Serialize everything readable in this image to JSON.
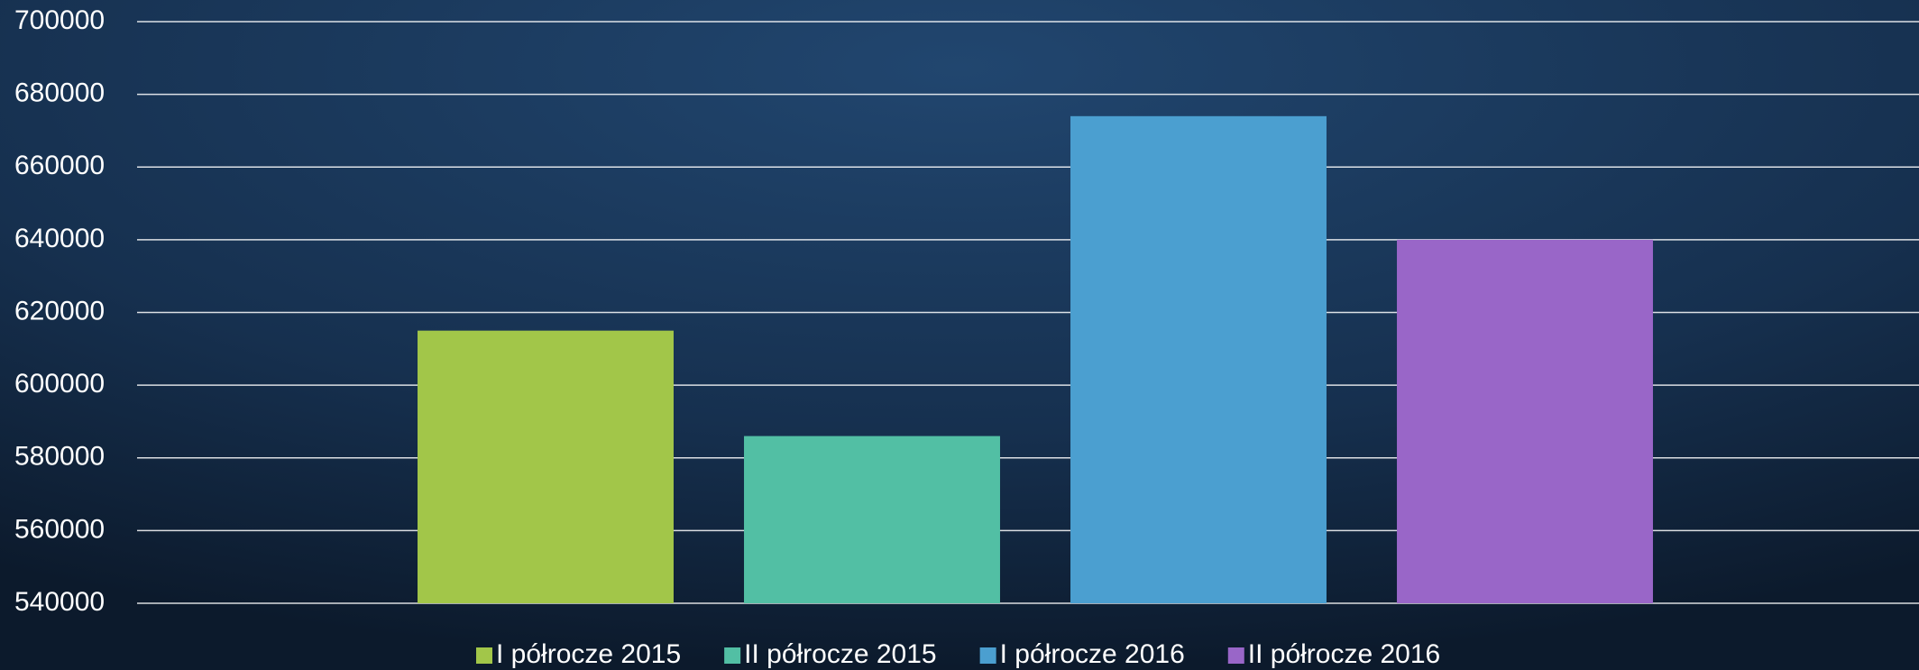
{
  "chart_data": {
    "type": "bar",
    "categories": [
      null
    ],
    "series": [
      {
        "name": "I półrocze 2015",
        "color": "#a2c649",
        "values": [
          615000
        ]
      },
      {
        "name": "II półrocze 2015",
        "color": "#52bfa4",
        "values": [
          586000
        ]
      },
      {
        "name": "I półrocze 2016",
        "color": "#4b9fd0",
        "values": [
          674000
        ]
      },
      {
        "name": "II półrocze 2016",
        "color": "#9966c8",
        "values": [
          640000
        ]
      }
    ],
    "ylim": [
      540000,
      700000
    ],
    "yticks": [
      540000,
      560000,
      580000,
      600000,
      620000,
      640000,
      660000,
      680000,
      700000
    ],
    "grid": true,
    "legend": "bottom"
  }
}
